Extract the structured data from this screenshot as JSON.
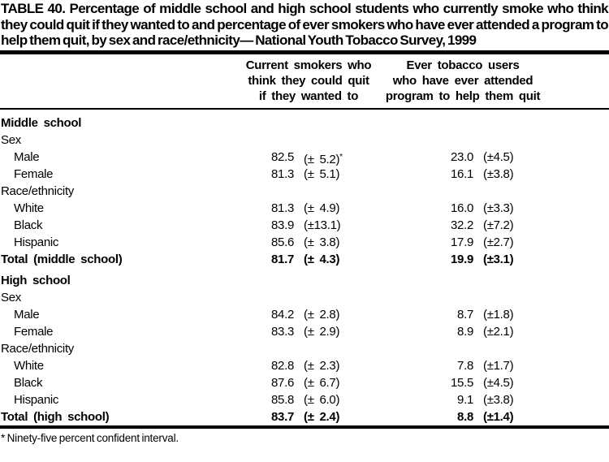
{
  "title": "TABLE 40. Percentage of middle school and high school students who currently smoke who think they could quit if they wanted to and percentage of ever smokers who have ever attended a program to help them quit, by sex and race/ethnicity— National Youth Tobacco Survey, 1999",
  "table": {
    "col_headers": [
      {
        "lines": [
          "Current smokers who",
          "think they could quit",
          "if they wanted to"
        ]
      },
      {
        "lines": [
          "Ever tobacco users",
          "who have ever attended",
          "program to help them quit"
        ]
      }
    ],
    "sections": [
      {
        "title": "Middle school",
        "rows": [
          {
            "kind": "subhead",
            "label": "Sex"
          },
          {
            "kind": "data",
            "label": "Male",
            "v1": "82.5",
            "c1": "(± 5.2)",
            "note": "*",
            "v2": "23.0",
            "c2": "(±4.5)"
          },
          {
            "kind": "data",
            "label": "Female",
            "v1": "81.3",
            "c1": "(± 5.1)",
            "v2": "16.1",
            "c2": "(±3.8)"
          },
          {
            "kind": "subhead",
            "label": "Race/ethnicity"
          },
          {
            "kind": "data",
            "label": "White",
            "v1": "81.3",
            "c1": "(± 4.9)",
            "v2": "16.0",
            "c2": "(±3.3)"
          },
          {
            "kind": "data",
            "label": "Black",
            "v1": "83.9",
            "c1": "(±13.1)",
            "v2": "32.2",
            "c2": "(±7.2)"
          },
          {
            "kind": "data",
            "label": "Hispanic",
            "v1": "85.6",
            "c1": "(± 3.8)",
            "v2": "17.9",
            "c2": "(±2.7)"
          },
          {
            "kind": "total",
            "label": "Total (middle school)",
            "v1": "81.7",
            "c1": "(± 4.3)",
            "v2": "19.9",
            "c2": "(±3.1)"
          }
        ]
      },
      {
        "title": "High school",
        "rows": [
          {
            "kind": "subhead",
            "label": "Sex"
          },
          {
            "kind": "data",
            "label": "Male",
            "v1": "84.2",
            "c1": "(± 2.8)",
            "v2": "8.7",
            "c2": "(±1.8)"
          },
          {
            "kind": "data",
            "label": "Female",
            "v1": "83.3",
            "c1": "(± 2.9)",
            "v2": "8.9",
            "c2": "(±2.1)"
          },
          {
            "kind": "subhead",
            "label": "Race/ethnicity"
          },
          {
            "kind": "data",
            "label": "White",
            "v1": "82.8",
            "c1": "(± 2.3)",
            "v2": "7.8",
            "c2": "(±1.7)"
          },
          {
            "kind": "data",
            "label": "Black",
            "v1": "87.6",
            "c1": "(± 6.7)",
            "v2": "15.5",
            "c2": "(±4.5)"
          },
          {
            "kind": "data",
            "label": "Hispanic",
            "v1": "85.8",
            "c1": "(± 6.0)",
            "v2": "9.1",
            "c2": "(±3.8)"
          },
          {
            "kind": "total",
            "label": "Total (high school)",
            "v1": "83.7",
            "c1": "(± 2.4)",
            "v2": "8.8",
            "c2": "(±1.4)"
          }
        ]
      }
    ]
  },
  "footnote": "* Ninety-five percent confident interval."
}
